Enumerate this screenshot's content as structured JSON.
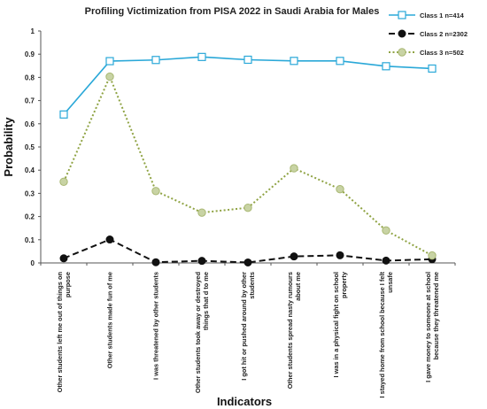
{
  "chart_data": {
    "type": "line",
    "title": "Profiling Victimization from PISA 2022 in Saudi Arabia for Males",
    "xlabel": "Indicators",
    "ylabel": "Probability",
    "ylim": [
      0,
      1
    ],
    "yticks": [
      "0",
      "0.1",
      "0.2",
      "0.3",
      "0.4",
      "0.5",
      "0.6",
      "0.7",
      "0.8",
      "0.9",
      "1"
    ],
    "grid": false,
    "legend_position": "top-right",
    "categories": [
      [
        "Other students left me out of things on",
        "purpose"
      ],
      [
        "Other students made fun of me"
      ],
      [
        "I was threatened by other students"
      ],
      [
        "Other students took away or destroyed",
        "things that d to me"
      ],
      [
        "I got hit or pushed around by other",
        "students"
      ],
      [
        "Other students spread nasty rumours",
        "about me"
      ],
      [
        "I was in a physical fight on school",
        "property"
      ],
      [
        "I stayed home from school because I felt",
        "unsafe"
      ],
      [
        "I gave money to someone at school",
        "because they threatened me"
      ]
    ],
    "series": [
      {
        "name": "Class 1 n=414",
        "color": "#2aa8d8",
        "style": "solid",
        "marker": "square",
        "values": [
          0.64,
          0.87,
          0.875,
          0.888,
          0.876,
          0.871,
          0.871,
          0.848,
          0.838
        ]
      },
      {
        "name": "Class 2 n=2302",
        "color": "#111111",
        "style": "dashed",
        "marker": "circle",
        "values": [
          0.02,
          0.101,
          0.003,
          0.009,
          0.002,
          0.028,
          0.033,
          0.01,
          0.016
        ]
      },
      {
        "name": "Class 3 n=502",
        "color": "#8fa343",
        "style": "dotted",
        "marker": "circle-light",
        "values": [
          0.35,
          0.803,
          0.31,
          0.217,
          0.238,
          0.408,
          0.318,
          0.14,
          0.032
        ]
      }
    ]
  }
}
